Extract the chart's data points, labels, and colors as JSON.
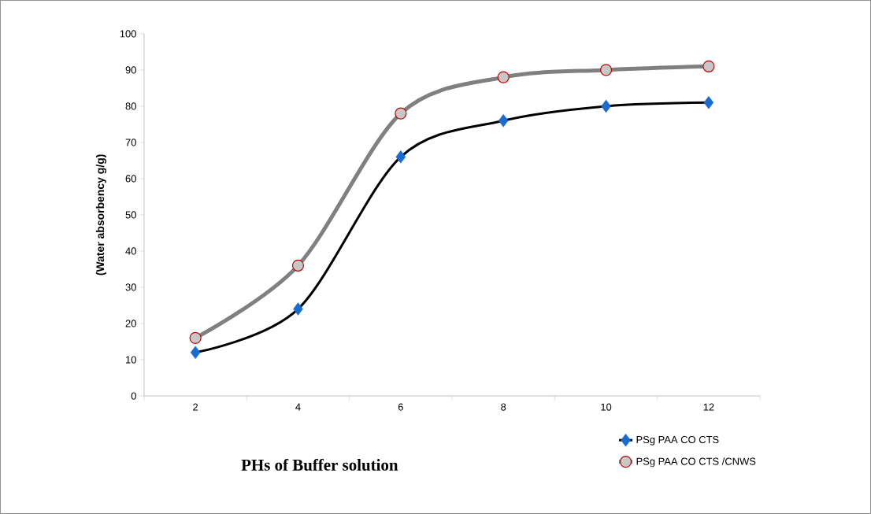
{
  "chart_data": {
    "type": "line",
    "xlabel": "PHs of Buffer solution",
    "ylabel": "(Water absorbency g/g)",
    "categories": [
      "2",
      "4",
      "6",
      "8",
      "10",
      "12"
    ],
    "series": [
      {
        "name": "PSg PAA CO CTS",
        "color": "#000000",
        "marker": "diamond",
        "values": [
          12,
          24,
          66,
          76,
          80,
          81
        ]
      },
      {
        "name": "PSg PAA CO CTS /CNWS",
        "color": "#808080",
        "marker": "circle",
        "values": [
          16,
          36,
          78,
          88,
          90,
          91
        ]
      }
    ],
    "ylim": [
      0,
      100
    ],
    "yticks": [
      0,
      10,
      20,
      30,
      40,
      50,
      60,
      70,
      80,
      90,
      100
    ],
    "grid": false,
    "legend": "bottom right"
  }
}
